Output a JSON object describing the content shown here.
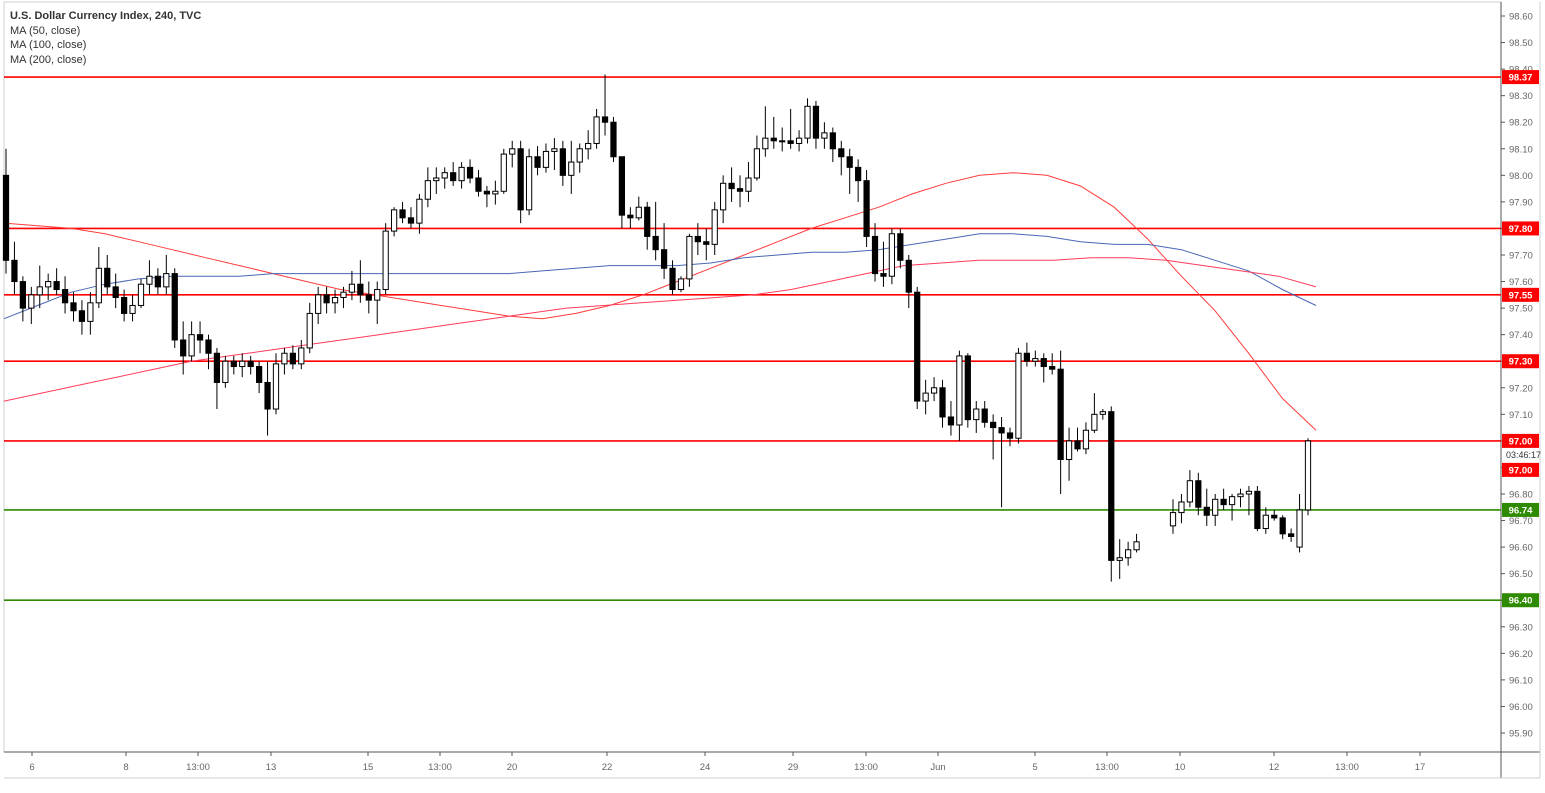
{
  "legend": {
    "title": "U.S. Dollar Currency Index, 240, TVC",
    "ma50": "MA (50, close)",
    "ma100": "MA (100, close)",
    "ma200": "MA (200, close)"
  },
  "countdown": "03:46:17",
  "colors": {
    "up_body": "#ffffff",
    "down_body": "#000000",
    "wick": "#000000",
    "resistance": "#ff0000",
    "support": "#2e8b00",
    "ma50": "#ff3b3b",
    "ma100": "#4a67b5",
    "ma200": "#ff3b5c",
    "axis": "#666666"
  },
  "chart_data": {
    "type": "candlestick",
    "y_axis": {
      "min": 95.8,
      "max": 98.65,
      "tick_labels": [
        "98.60",
        "98.50",
        "98.40",
        "98.30",
        "98.20",
        "98.10",
        "98.00",
        "97.90",
        "97.80",
        "97.70",
        "97.60",
        "97.50",
        "97.40",
        "97.30",
        "97.20",
        "97.10",
        "97.00",
        "96.90",
        "96.80",
        "96.70",
        "96.60",
        "96.50",
        "96.40",
        "96.30",
        "96.20",
        "96.10",
        "96.00",
        "95.90"
      ]
    },
    "x_axis": {
      "tick_labels": [
        "6",
        "8",
        "13:00",
        "13",
        "15",
        "13:00",
        "20",
        "22",
        "24",
        "29",
        "13:00",
        "Jun",
        "5",
        "13:00",
        "10",
        "12",
        "13:00",
        "17"
      ]
    },
    "horizontal_levels": [
      {
        "value": 98.37,
        "label": "98.37",
        "kind": "resistance"
      },
      {
        "value": 97.8,
        "label": "97.80",
        "kind": "resistance"
      },
      {
        "value": 97.55,
        "label": "97.55",
        "kind": "resistance"
      },
      {
        "value": 97.3,
        "label": "97.30",
        "kind": "resistance"
      },
      {
        "value": 97.0,
        "label": "97.00",
        "kind": "resistance"
      },
      {
        "value": 96.74,
        "label": "96.74",
        "kind": "support"
      },
      {
        "value": 96.4,
        "label": "96.40",
        "kind": "support"
      }
    ],
    "price_marker": {
      "value": 97.0,
      "label": "97.00"
    },
    "moving_averages": [
      {
        "name": "MA (50, close)",
        "values": [
          97.82,
          97.81,
          97.8,
          97.78,
          97.75,
          97.72,
          97.69,
          97.66,
          97.63,
          97.6,
          97.57,
          97.55,
          97.53,
          97.51,
          97.49,
          97.47,
          97.46,
          97.48,
          97.51,
          97.55,
          97.6,
          97.65,
          97.7,
          97.75,
          97.8,
          97.84,
          97.88,
          97.93,
          97.97,
          98.0,
          98.01,
          98.0,
          97.96,
          97.88,
          97.76,
          97.62,
          97.49,
          97.33,
          97.16,
          97.04
        ]
      },
      {
        "name": "MA (100, close)",
        "values": [
          97.46,
          97.51,
          97.56,
          97.59,
          97.61,
          97.62,
          97.62,
          97.62,
          97.63,
          97.63,
          97.63,
          97.63,
          97.63,
          97.63,
          97.63,
          97.63,
          97.64,
          97.65,
          97.66,
          97.66,
          97.66,
          97.67,
          97.69,
          97.7,
          97.71,
          97.71,
          97.72,
          97.74,
          97.76,
          97.78,
          97.78,
          97.77,
          97.75,
          97.74,
          97.74,
          97.72,
          97.68,
          97.64,
          97.57,
          97.51
        ]
      },
      {
        "name": "MA (200, close)",
        "values": [
          97.15,
          97.18,
          97.21,
          97.24,
          97.27,
          97.3,
          97.32,
          97.34,
          97.36,
          97.38,
          97.4,
          97.42,
          97.44,
          97.46,
          97.48,
          97.5,
          97.51,
          97.52,
          97.53,
          97.54,
          97.55,
          97.57,
          97.6,
          97.63,
          97.66,
          97.67,
          97.68,
          97.68,
          97.68,
          97.69,
          97.69,
          97.68,
          97.66,
          97.64,
          97.62,
          97.58
        ]
      }
    ],
    "candles": [
      [
        98.0,
        98.1,
        97.63,
        97.68
      ],
      [
        97.68,
        97.75,
        97.55,
        97.6
      ],
      [
        97.6,
        97.62,
        97.45,
        97.5
      ],
      [
        97.5,
        97.58,
        97.44,
        97.55
      ],
      [
        97.55,
        97.66,
        97.5,
        97.58
      ],
      [
        97.58,
        97.63,
        97.53,
        97.6
      ],
      [
        97.6,
        97.65,
        97.55,
        97.57
      ],
      [
        97.57,
        97.62,
        97.48,
        97.52
      ],
      [
        97.52,
        97.56,
        97.45,
        97.49
      ],
      [
        97.49,
        97.53,
        97.4,
        97.45
      ],
      [
        97.45,
        97.56,
        97.4,
        97.52
      ],
      [
        97.52,
        97.73,
        97.5,
        97.65
      ],
      [
        97.65,
        97.7,
        97.55,
        97.58
      ],
      [
        97.58,
        97.63,
        97.5,
        97.54
      ],
      [
        97.54,
        97.57,
        97.45,
        97.48
      ],
      [
        97.48,
        97.55,
        97.45,
        97.51
      ],
      [
        97.51,
        97.61,
        97.5,
        97.59
      ],
      [
        97.59,
        97.68,
        97.55,
        97.62
      ],
      [
        97.62,
        97.65,
        97.55,
        97.58
      ],
      [
        97.58,
        97.7,
        97.55,
        97.63
      ],
      [
        97.63,
        97.65,
        97.35,
        97.38
      ],
      [
        97.38,
        97.45,
        97.25,
        97.32
      ],
      [
        97.32,
        97.45,
        97.3,
        97.4
      ],
      [
        97.4,
        97.45,
        97.33,
        97.38
      ],
      [
        97.38,
        97.4,
        97.27,
        97.33
      ],
      [
        97.33,
        97.35,
        97.12,
        97.22
      ],
      [
        97.22,
        97.32,
        97.2,
        97.3
      ],
      [
        97.3,
        97.32,
        97.25,
        97.28
      ],
      [
        97.28,
        97.33,
        97.24,
        97.3
      ],
      [
        97.3,
        97.32,
        97.25,
        97.28
      ],
      [
        97.28,
        97.3,
        97.18,
        97.22
      ],
      [
        97.22,
        97.3,
        97.02,
        97.12
      ],
      [
        97.12,
        97.33,
        97.1,
        97.29
      ],
      [
        97.29,
        97.35,
        97.25,
        97.33
      ],
      [
        97.33,
        97.36,
        97.27,
        97.29
      ],
      [
        97.29,
        97.38,
        97.27,
        97.35
      ],
      [
        97.35,
        97.52,
        97.33,
        97.48
      ],
      [
        97.48,
        97.58,
        97.44,
        97.55
      ],
      [
        97.55,
        97.58,
        97.48,
        97.52
      ],
      [
        97.52,
        97.57,
        97.48,
        97.54
      ],
      [
        97.54,
        97.58,
        97.5,
        97.56
      ],
      [
        97.56,
        97.64,
        97.53,
        97.59
      ],
      [
        97.59,
        97.68,
        97.52,
        97.55
      ],
      [
        97.55,
        97.6,
        97.48,
        97.53
      ],
      [
        97.53,
        97.6,
        97.44,
        97.57
      ],
      [
        97.57,
        97.82,
        97.55,
        97.79
      ],
      [
        97.79,
        97.88,
        97.77,
        97.87
      ],
      [
        97.87,
        97.9,
        97.82,
        97.84
      ],
      [
        97.84,
        97.88,
        97.8,
        97.82
      ],
      [
        97.82,
        97.93,
        97.78,
        97.91
      ],
      [
        97.91,
        98.03,
        97.88,
        97.98
      ],
      [
        97.98,
        98.03,
        97.93,
        97.99
      ],
      [
        97.99,
        98.03,
        97.95,
        98.01
      ],
      [
        98.01,
        98.05,
        97.96,
        97.98
      ],
      [
        97.98,
        98.05,
        97.95,
        98.03
      ],
      [
        98.03,
        98.06,
        97.97,
        97.99
      ],
      [
        97.99,
        98.02,
        97.92,
        97.94
      ],
      [
        97.94,
        97.96,
        97.88,
        97.93
      ],
      [
        97.93,
        97.98,
        97.89,
        97.94
      ],
      [
        97.94,
        98.1,
        97.93,
        98.08
      ],
      [
        98.08,
        98.13,
        98.03,
        98.1
      ],
      [
        98.1,
        98.13,
        97.82,
        97.87
      ],
      [
        97.87,
        98.1,
        97.85,
        98.07
      ],
      [
        98.07,
        98.11,
        98.0,
        98.03
      ],
      [
        98.03,
        98.12,
        98.01,
        98.09
      ],
      [
        98.09,
        98.14,
        98.02,
        98.1
      ],
      [
        98.1,
        98.13,
        97.96,
        98.0
      ],
      [
        98.0,
        98.13,
        97.93,
        98.05
      ],
      [
        98.05,
        98.12,
        98.01,
        98.1
      ],
      [
        98.1,
        98.17,
        98.06,
        98.12
      ],
      [
        98.12,
        98.25,
        98.1,
        98.22
      ],
      [
        98.22,
        98.38,
        98.15,
        98.2
      ],
      [
        98.2,
        98.22,
        98.05,
        98.07
      ],
      [
        98.07,
        98.07,
        97.8,
        97.85
      ],
      [
        97.85,
        97.88,
        97.8,
        97.84
      ],
      [
        97.84,
        97.92,
        97.83,
        97.88
      ],
      [
        97.88,
        97.9,
        97.72,
        97.77
      ],
      [
        97.77,
        97.9,
        97.68,
        97.72
      ],
      [
        97.72,
        97.82,
        97.61,
        97.65
      ],
      [
        97.65,
        97.68,
        97.55,
        97.57
      ],
      [
        97.57,
        97.62,
        97.56,
        97.61
      ],
      [
        97.61,
        97.78,
        97.58,
        97.77
      ],
      [
        97.77,
        97.82,
        97.7,
        97.75
      ],
      [
        97.75,
        97.8,
        97.68,
        97.74
      ],
      [
        97.74,
        97.9,
        97.7,
        97.87
      ],
      [
        97.87,
        98.0,
        97.82,
        97.97
      ],
      [
        97.97,
        98.03,
        97.9,
        97.95
      ],
      [
        97.95,
        98.0,
        97.88,
        97.94
      ],
      [
        97.94,
        98.05,
        97.9,
        97.99
      ],
      [
        97.99,
        98.15,
        97.98,
        98.1
      ],
      [
        98.1,
        98.26,
        98.07,
        98.14
      ],
      [
        98.14,
        98.22,
        98.1,
        98.13
      ],
      [
        98.13,
        98.18,
        98.09,
        98.13
      ],
      [
        98.13,
        98.25,
        98.1,
        98.12
      ],
      [
        98.12,
        98.17,
        98.09,
        98.14
      ],
      [
        98.14,
        98.29,
        98.12,
        98.26
      ],
      [
        98.26,
        98.28,
        98.1,
        98.14
      ],
      [
        98.14,
        98.2,
        98.1,
        98.16
      ],
      [
        98.16,
        98.18,
        98.05,
        98.1
      ],
      [
        98.1,
        98.13,
        98.0,
        98.07
      ],
      [
        98.07,
        98.1,
        97.93,
        98.03
      ],
      [
        98.03,
        98.06,
        97.9,
        97.98
      ],
      [
        97.98,
        98.02,
        97.73,
        97.77
      ],
      [
        97.77,
        97.82,
        97.6,
        97.63
      ],
      [
        97.63,
        97.75,
        97.58,
        97.62
      ],
      [
        97.62,
        97.8,
        97.59,
        97.78
      ],
      [
        97.78,
        97.8,
        97.65,
        97.68
      ],
      [
        97.68,
        97.7,
        97.5,
        97.56
      ],
      [
        97.56,
        97.58,
        97.12,
        97.15
      ],
      [
        97.15,
        97.23,
        97.1,
        97.18
      ],
      [
        97.18,
        97.24,
        97.15,
        97.2
      ],
      [
        97.2,
        97.23,
        97.05,
        97.09
      ],
      [
        97.09,
        97.15,
        97.02,
        97.06
      ],
      [
        97.06,
        97.34,
        97.0,
        97.32
      ],
      [
        97.32,
        97.33,
        97.05,
        97.08
      ],
      [
        97.08,
        97.15,
        97.03,
        97.12
      ],
      [
        97.12,
        97.15,
        97.05,
        97.07
      ],
      [
        97.07,
        97.1,
        96.93,
        97.05
      ],
      [
        97.05,
        97.09,
        96.75,
        97.03
      ],
      [
        97.03,
        97.05,
        96.98,
        97.01
      ],
      [
        97.01,
        97.35,
        96.99,
        97.33
      ],
      [
        97.33,
        97.37,
        97.28,
        97.3
      ],
      [
        97.3,
        97.34,
        97.28,
        97.31
      ],
      [
        97.31,
        97.33,
        97.22,
        97.28
      ],
      [
        97.28,
        97.33,
        97.25,
        97.27
      ],
      [
        97.27,
        97.34,
        96.8,
        96.93
      ],
      [
        96.93,
        97.05,
        96.85,
        97.0
      ],
      [
        97.0,
        97.05,
        96.96,
        96.97
      ],
      [
        96.97,
        97.07,
        96.95,
        97.04
      ],
      [
        97.04,
        97.18,
        97.03,
        97.1
      ],
      [
        97.1,
        97.12,
        97.08,
        97.11
      ],
      [
        97.11,
        97.13,
        96.47,
        96.55
      ],
      [
        96.55,
        96.63,
        96.48,
        96.56
      ],
      [
        96.56,
        96.62,
        96.53,
        96.59
      ],
      [
        96.59,
        96.65,
        96.58,
        96.62
      ]
    ],
    "candles_cont": [
      [
        96.68,
        96.78,
        96.65,
        96.73
      ],
      [
        96.73,
        96.8,
        96.69,
        96.77
      ],
      [
        96.77,
        96.89,
        96.75,
        96.85
      ],
      [
        96.85,
        96.88,
        96.72,
        96.75
      ],
      [
        96.75,
        96.82,
        96.68,
        96.72
      ],
      [
        96.72,
        96.8,
        96.68,
        96.78
      ],
      [
        96.78,
        96.82,
        96.74,
        96.76
      ],
      [
        96.76,
        96.8,
        96.7,
        96.79
      ],
      [
        96.79,
        96.82,
        96.75,
        96.8
      ],
      [
        96.8,
        96.83,
        96.72,
        96.81
      ],
      [
        96.81,
        96.83,
        96.66,
        96.67
      ],
      [
        96.67,
        96.75,
        96.65,
        96.72
      ],
      [
        96.72,
        96.74,
        96.7,
        96.71
      ],
      [
        96.71,
        96.72,
        96.63,
        96.65
      ],
      [
        96.65,
        96.67,
        96.62,
        96.64
      ],
      [
        96.6,
        96.8,
        96.58,
        96.74
      ],
      [
        96.74,
        97.01,
        96.72,
        97.0
      ]
    ]
  }
}
